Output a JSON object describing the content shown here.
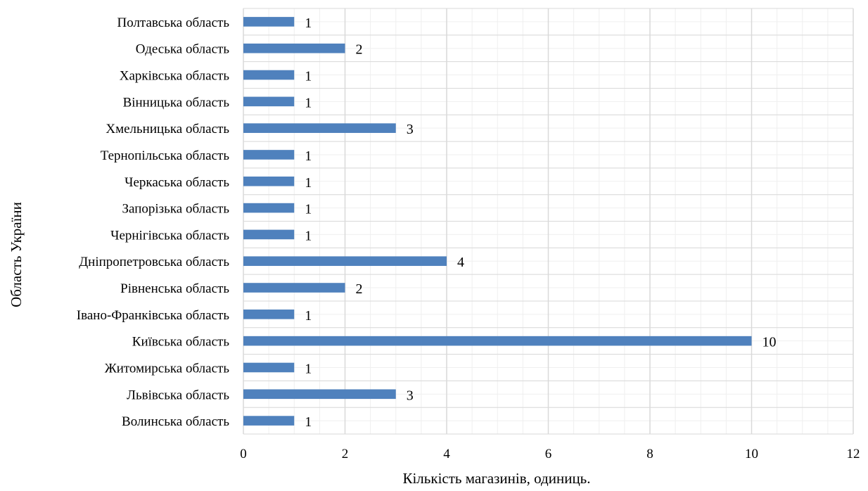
{
  "chart_data": {
    "type": "bar",
    "orientation": "horizontal",
    "categories": [
      "Полтавська область",
      "Одеська область",
      "Харківська область",
      "Вінницька область",
      "Хмельницька область",
      "Тернопільська область",
      "Черкаська область",
      "Запорізька область",
      "Чернігівська область",
      "Дніпропетровська область",
      "Рівненська область",
      "Івано-Франківська область",
      "Київська область",
      "Житомирська область",
      "Львівська область",
      "Волинська область"
    ],
    "values": [
      1,
      2,
      1,
      1,
      3,
      1,
      1,
      1,
      1,
      4,
      2,
      1,
      10,
      1,
      3,
      1
    ],
    "xlabel": "Кількість магазинів, одиниць.",
    "ylabel": "Область України",
    "xlim": [
      0,
      12
    ],
    "xticks": [
      "0",
      "2",
      "4",
      "6",
      "8",
      "10",
      "12"
    ],
    "grid": "major and minor",
    "legend": "none",
    "bar_color": "#4f81bd",
    "grid_color": "#d9d9d9",
    "minor_grid_color": "#efefef"
  }
}
